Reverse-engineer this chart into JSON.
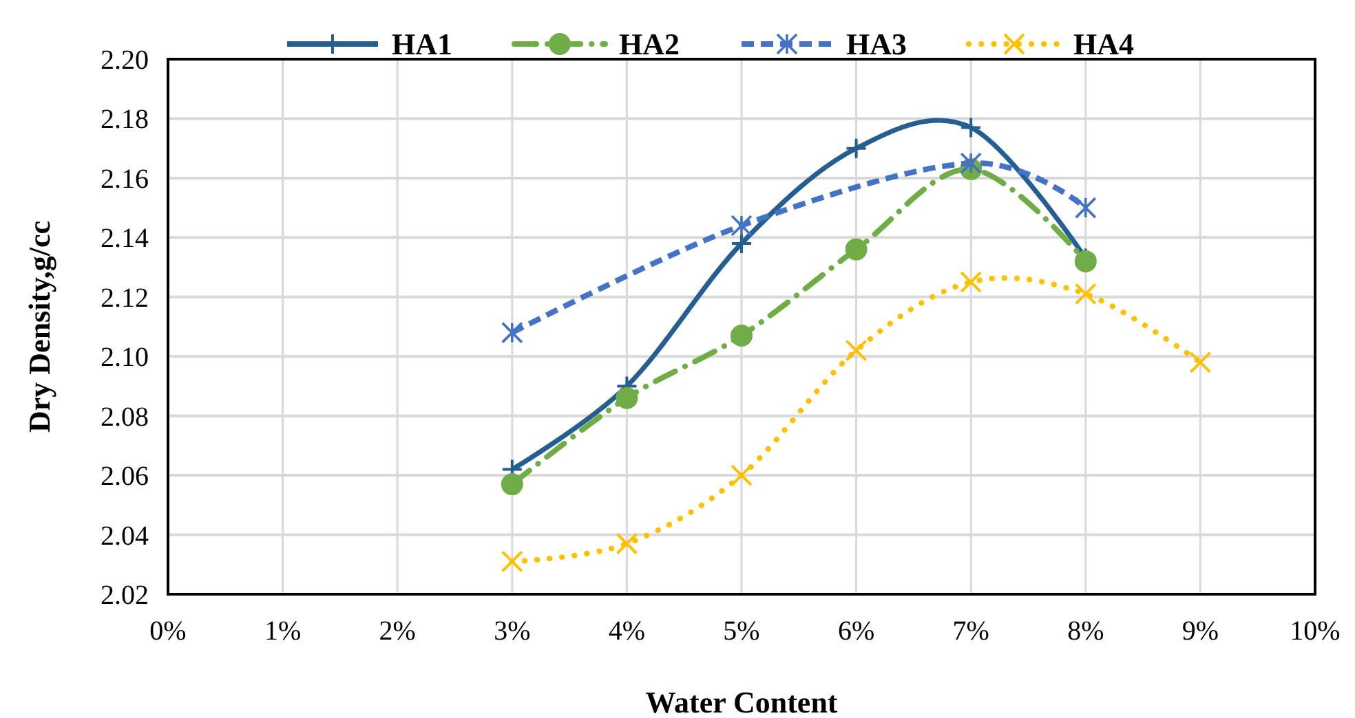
{
  "chart_data": {
    "type": "line",
    "xlabel": "Water Content",
    "ylabel": "Dry Density,g/cc",
    "xlim": [
      0,
      0.1
    ],
    "xticks": [
      {
        "value": 0,
        "label": "0%"
      },
      {
        "value": 0.01,
        "label": "1%"
      },
      {
        "value": 0.02,
        "label": "2%"
      },
      {
        "value": 0.03,
        "label": "3%"
      },
      {
        "value": 0.04,
        "label": "4%"
      },
      {
        "value": 0.05,
        "label": "5%"
      },
      {
        "value": 0.06,
        "label": "6%"
      },
      {
        "value": 0.07,
        "label": "7%"
      },
      {
        "value": 0.08,
        "label": "8%"
      },
      {
        "value": 0.09,
        "label": "9%"
      },
      {
        "value": 0.1,
        "label": "10%"
      }
    ],
    "ylim": [
      2.02,
      2.2
    ],
    "yticks": [
      {
        "value": 2.02,
        "label": "2.02"
      },
      {
        "value": 2.04,
        "label": "2.04"
      },
      {
        "value": 2.06,
        "label": "2.06"
      },
      {
        "value": 2.08,
        "label": "2.08"
      },
      {
        "value": 2.1,
        "label": "2.10"
      },
      {
        "value": 2.12,
        "label": "2.12"
      },
      {
        "value": 2.14,
        "label": "2.14"
      },
      {
        "value": 2.16,
        "label": "2.16"
      },
      {
        "value": 2.18,
        "label": "2.18"
      },
      {
        "value": 2.2,
        "label": "2.20"
      }
    ],
    "grid": true,
    "legend": "top",
    "series": [
      {
        "name": "HA1",
        "color": "#255e91",
        "marker": "plus",
        "line_style": "solid",
        "x": [
          0.03,
          0.04,
          0.05,
          0.06,
          0.07,
          0.08
        ],
        "values": [
          2.062,
          2.09,
          2.138,
          2.17,
          2.177,
          2.133
        ]
      },
      {
        "name": "HA2",
        "color": "#70ad47",
        "marker": "circle",
        "line_style": "dashdot",
        "x": [
          0.03,
          0.04,
          0.05,
          0.06,
          0.07,
          0.08
        ],
        "values": [
          2.057,
          2.086,
          2.107,
          2.136,
          2.163,
          2.132
        ]
      },
      {
        "name": "HA3",
        "color": "#4472c4",
        "marker": "cross",
        "line_style": "dashed",
        "x": [
          0.03,
          0.05,
          0.07,
          0.08
        ],
        "values": [
          2.108,
          2.144,
          2.165,
          2.15
        ]
      },
      {
        "name": "HA4",
        "color": "#ffc000",
        "marker": "x",
        "line_style": "dotted",
        "x": [
          0.03,
          0.04,
          0.05,
          0.06,
          0.07,
          0.08,
          0.09
        ],
        "values": [
          2.031,
          2.037,
          2.06,
          2.102,
          2.125,
          2.121,
          2.098
        ]
      }
    ]
  }
}
